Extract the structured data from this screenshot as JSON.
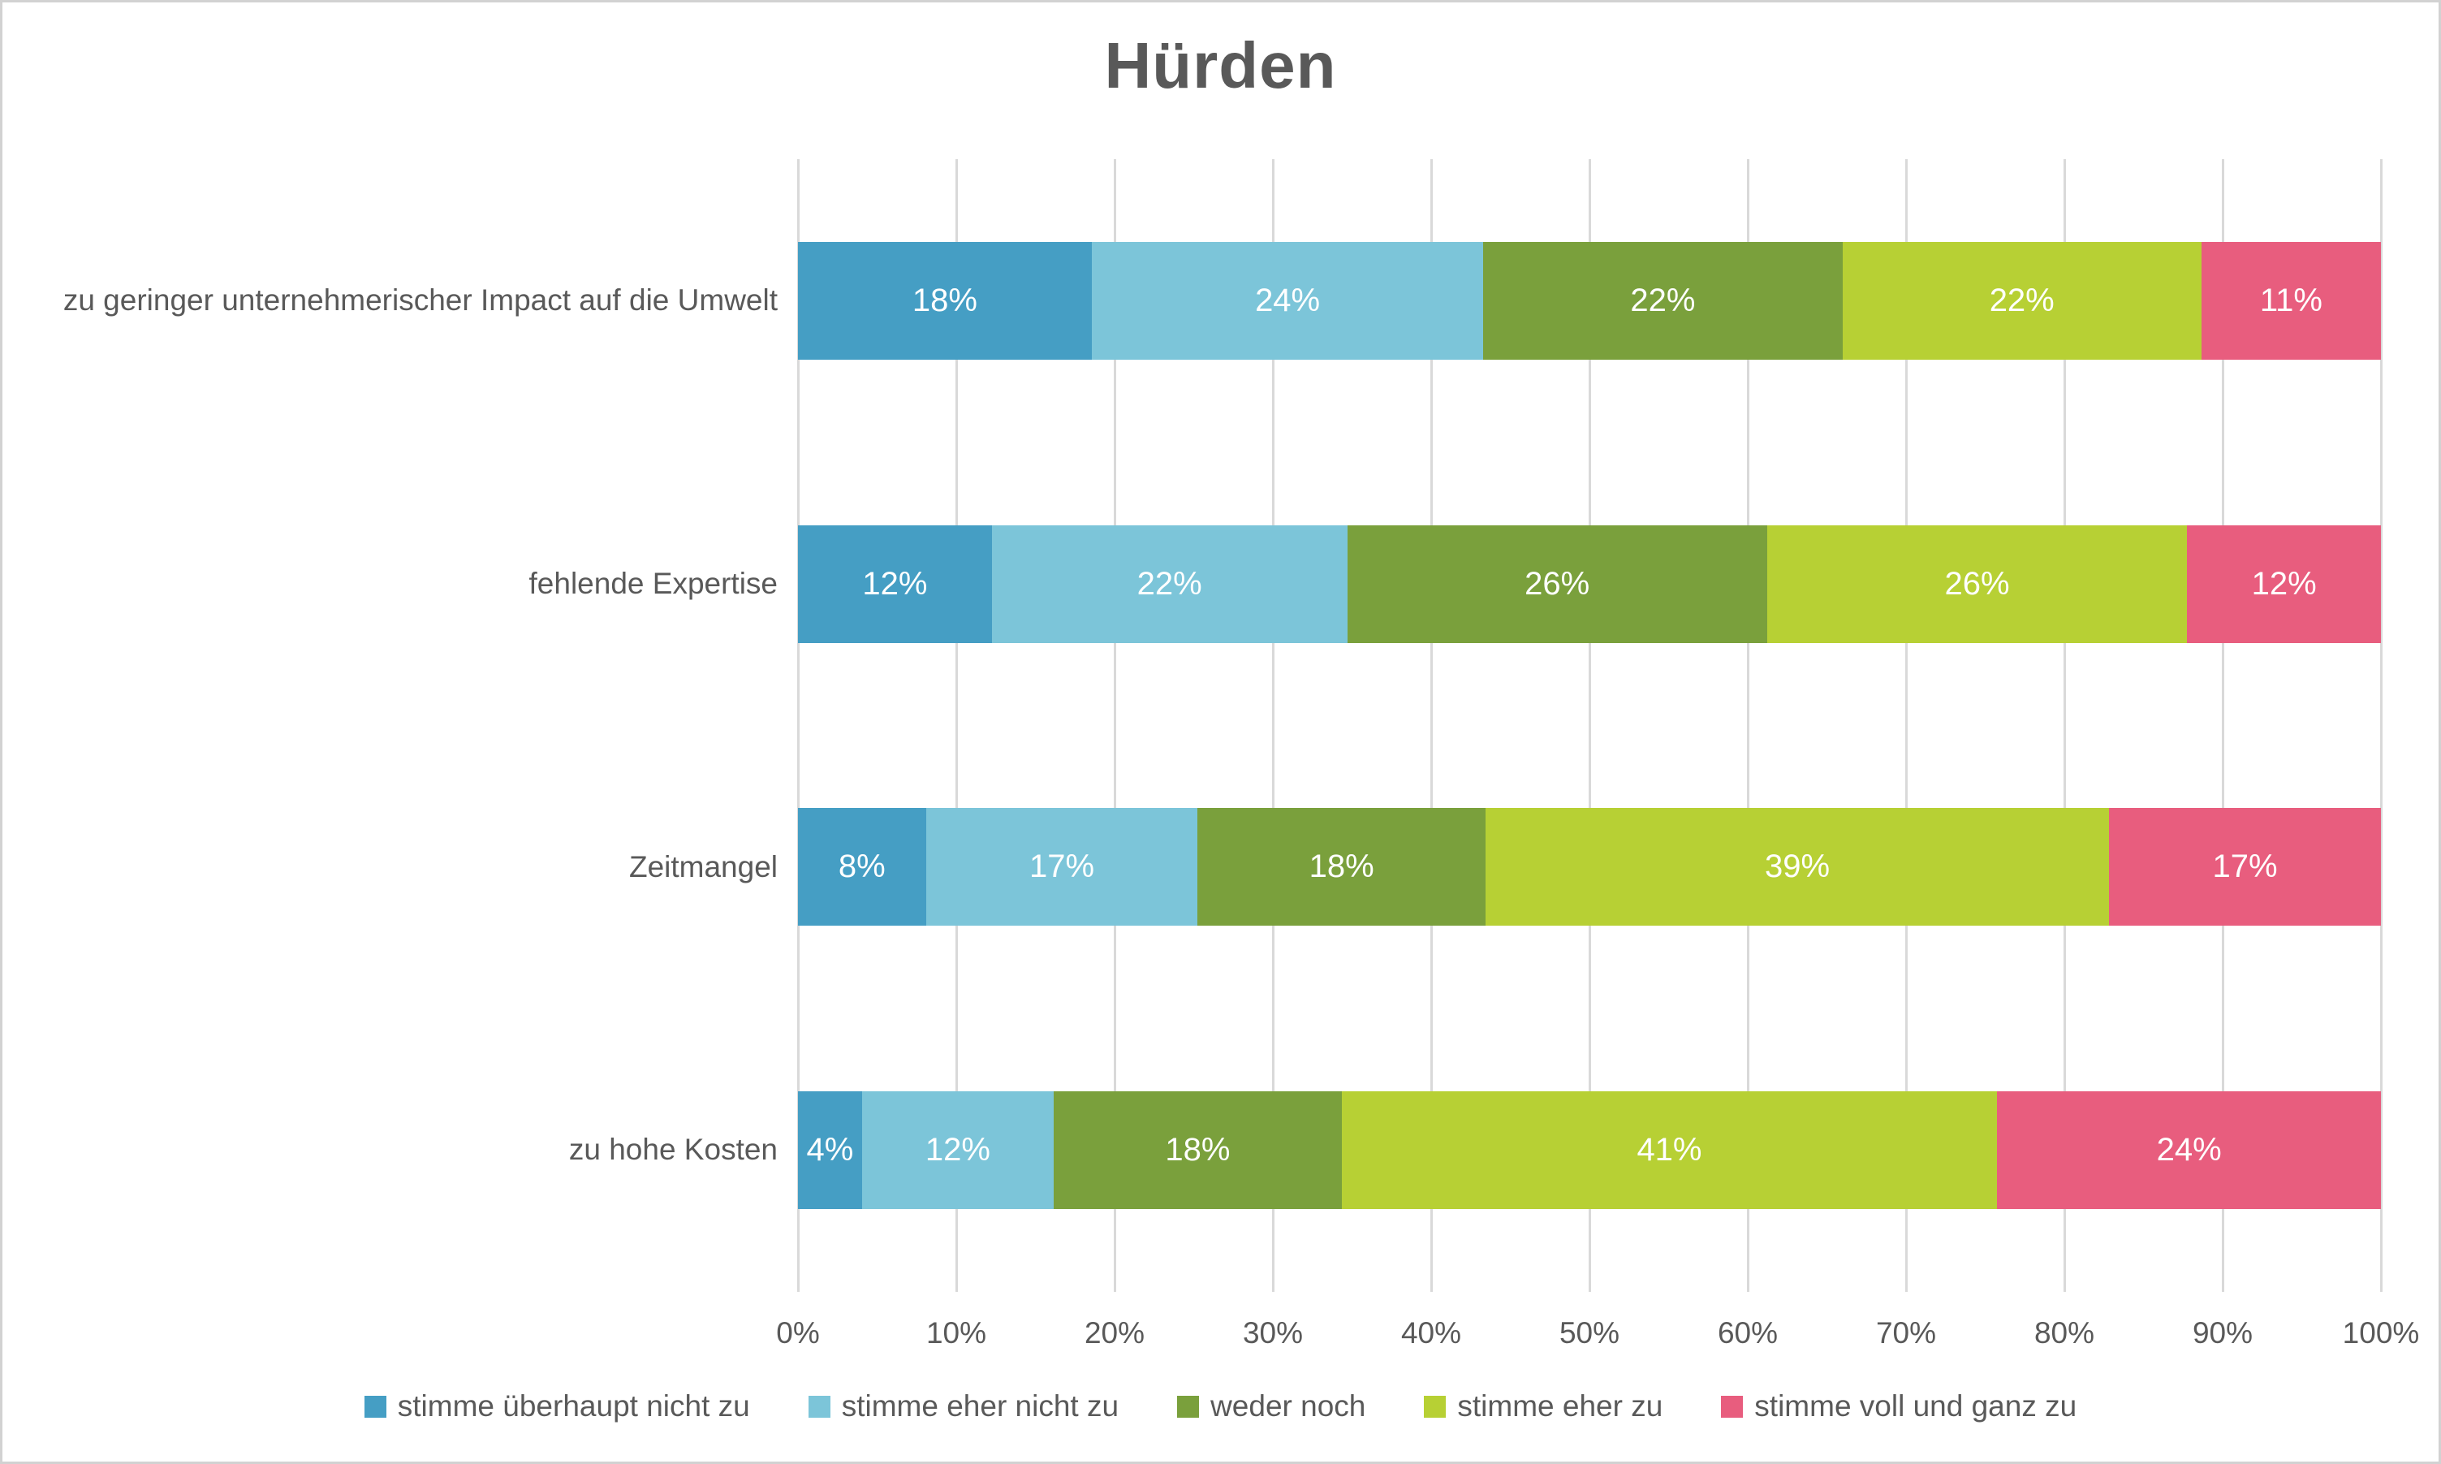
{
  "chart_data": {
    "type": "bar",
    "orientation": "horizontal",
    "stacked": true,
    "title": "Hürden",
    "categories": [
      "zu geringer unternehmerischer Impact auf die Umwelt",
      "fehlende Expertise",
      "Zeitmangel",
      "zu hohe Kosten"
    ],
    "series": [
      {
        "name": "stimme überhaupt nicht zu",
        "color": "#459ec4",
        "values": [
          18,
          12,
          8,
          4
        ]
      },
      {
        "name": "stimme eher nicht zu",
        "color": "#7cc5d9",
        "values": [
          24,
          22,
          17,
          12
        ]
      },
      {
        "name": "weder noch",
        "color": "#7aa03c",
        "values": [
          22,
          26,
          18,
          18
        ]
      },
      {
        "name": "stimme eher zu",
        "color": "#b7d034",
        "values": [
          22,
          26,
          39,
          41
        ]
      },
      {
        "name": "stimme voll und ganz zu",
        "color": "#e85d7e",
        "values": [
          11,
          12,
          17,
          24
        ]
      }
    ],
    "value_suffix": "%",
    "xlabel": "",
    "ylabel": "",
    "xlim": [
      0,
      100
    ],
    "x_ticks": [
      "0%",
      "10%",
      "20%",
      "30%",
      "40%",
      "50%",
      "60%",
      "70%",
      "80%",
      "90%",
      "100%"
    ],
    "grid": "vertical",
    "gridline_color": "#d9d9d9",
    "label_color": "#595959",
    "data_label_color": "#ffffff",
    "legend_position": "bottom"
  }
}
